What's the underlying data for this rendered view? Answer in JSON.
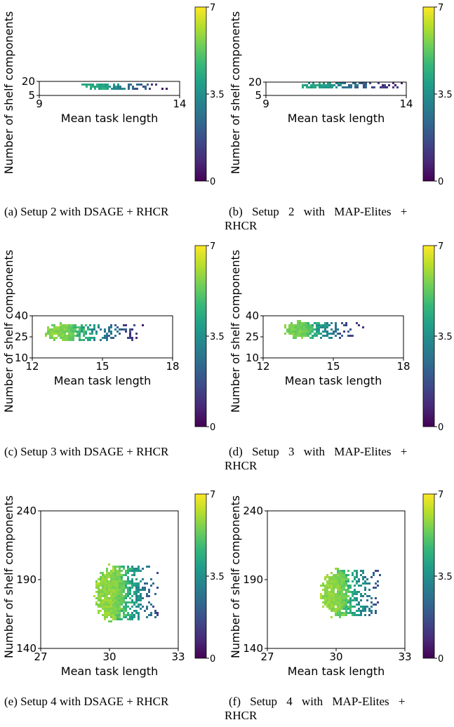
{
  "colorbar": {
    "ticks": [
      "7",
      "3.5",
      "0"
    ],
    "min": 0,
    "max": 7,
    "colormap": "viridis",
    "stops": [
      "#440154",
      "#482878",
      "#3e4989",
      "#31688e",
      "#26828e",
      "#1f9e89",
      "#35b779",
      "#6ece58",
      "#b5de2b",
      "#fde725"
    ]
  },
  "chart_data": [
    {
      "type": "heatmap",
      "id": "a",
      "xlabel": "Mean task length",
      "ylabel": "Number of shelf components",
      "xlim": [
        9,
        14
      ],
      "ylim": [
        5,
        20
      ],
      "xticks": [
        "9",
        "14"
      ],
      "yticks": [
        "20",
        "5"
      ],
      "caption_line1": "(a) Setup 2 with DSAGE + RHCR",
      "caption_line2": "",
      "cluster": {
        "x_center": 11.1,
        "y_center": 15,
        "x_spread": 0.45,
        "y_spread": 2.5,
        "core_value": 4.3,
        "tail_to_x": 13.9,
        "tail_value": 0.3
      }
    },
    {
      "type": "heatmap",
      "id": "b",
      "xlabel": "Mean task length",
      "ylabel": "Number of shelf components",
      "xlim": [
        9,
        14
      ],
      "ylim": [
        5,
        20
      ],
      "xticks": [
        "9",
        "14"
      ],
      "yticks": [
        "20",
        "5"
      ],
      "caption_line1": "(b) Setup 2 with MAP-Elites +",
      "caption_line2": "RHCR",
      "cluster": {
        "x_center": 10.9,
        "y_center": 16,
        "x_spread": 0.55,
        "y_spread": 2.3,
        "core_value": 4.0,
        "tail_to_x": 14.0,
        "tail_value": 0.3
      }
    },
    {
      "type": "heatmap",
      "id": "c",
      "xlabel": "Mean task length",
      "ylabel": "Number of shelf components",
      "xlim": [
        12,
        18
      ],
      "ylim": [
        10,
        40
      ],
      "xticks": [
        "12",
        "15",
        "18"
      ],
      "yticks": [
        "40",
        "25",
        "10"
      ],
      "caption_line1": "(c) Setup 3 with DSAGE + RHCR",
      "caption_line2": "",
      "cluster": {
        "x_center": 13.3,
        "y_center": 28,
        "x_spread": 0.55,
        "y_spread": 5,
        "core_value": 5.7,
        "tail_to_x": 16.8,
        "tail_value": 0.5
      }
    },
    {
      "type": "heatmap",
      "id": "d",
      "xlabel": "Mean task length",
      "ylabel": "Number of shelf components",
      "xlim": [
        12,
        18
      ],
      "ylim": [
        10,
        40
      ],
      "xticks": [
        "12",
        "15",
        "18"
      ],
      "yticks": [
        "40",
        "25",
        "10"
      ],
      "caption_line1": "(d) Setup 3 with MAP-Elites +",
      "caption_line2": "RHCR",
      "cluster": {
        "x_center": 13.6,
        "y_center": 30,
        "x_spread": 0.55,
        "y_spread": 4.5,
        "core_value": 5.5,
        "tail_to_x": 16.3,
        "tail_value": 0.3
      }
    },
    {
      "type": "heatmap",
      "id": "e",
      "xlabel": "Mean task length",
      "ylabel": "Number of shelf components",
      "xlim": [
        27,
        33
      ],
      "ylim": [
        140,
        240
      ],
      "xticks": [
        "27",
        "30",
        "33"
      ],
      "yticks": [
        "240",
        "190",
        "140"
      ],
      "caption_line1": "(e) Setup 4 with DSAGE + RHCR",
      "caption_line2": "",
      "cluster": {
        "x_center": 30.1,
        "y_center": 180,
        "x_spread": 0.55,
        "y_spread": 15,
        "core_value": 5.8,
        "tail_to_x": 32.2,
        "tail_value": 1.5
      }
    },
    {
      "type": "heatmap",
      "id": "f",
      "xlabel": "Mean task length",
      "ylabel": "Number of shelf components",
      "xlim": [
        27,
        33
      ],
      "ylim": [
        140,
        240
      ],
      "xticks": [
        "27",
        "30",
        "33"
      ],
      "yticks": [
        "240",
        "190",
        "140"
      ],
      "caption_line1": "(f) Setup 4 with MAP-Elites +",
      "caption_line2": "RHCR",
      "cluster": {
        "x_center": 30.0,
        "y_center": 180,
        "x_spread": 0.5,
        "y_spread": 13,
        "core_value": 5.8,
        "tail_to_x": 32.0,
        "tail_value": 1.5
      }
    }
  ]
}
